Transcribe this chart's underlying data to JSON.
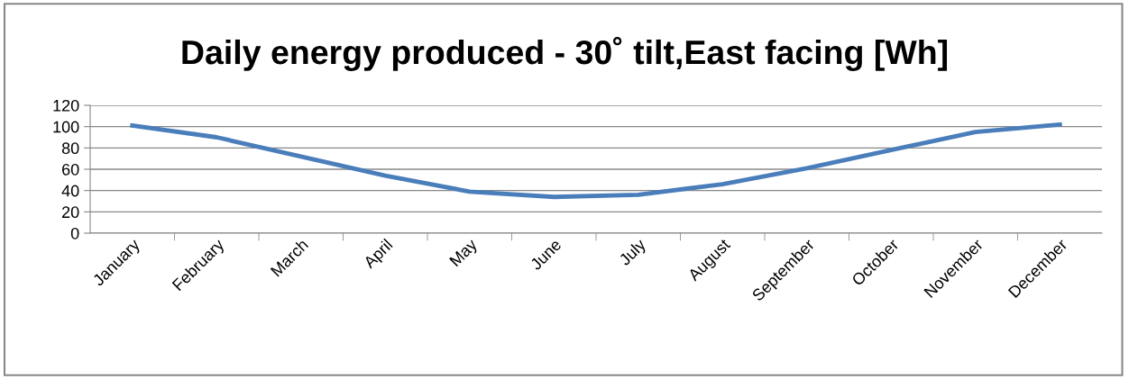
{
  "chart_data": {
    "type": "line",
    "title": "Daily energy produced - 30˚ tilt,East facing [Wh]",
    "categories": [
      "January",
      "February",
      "March",
      "April",
      "May",
      "June",
      "July",
      "August",
      "September",
      "October",
      "November",
      "December"
    ],
    "series": [
      {
        "color": "#4a7ebb",
        "values": [
          101,
          90,
          72,
          54,
          39,
          34,
          36,
          46,
          61,
          78,
          95,
          102
        ]
      }
    ],
    "ylim": [
      0,
      120
    ],
    "yticks": [
      0,
      20,
      40,
      60,
      80,
      100,
      120
    ],
    "grid": "y",
    "legend": false,
    "marker": "none",
    "line_style": "solid"
  }
}
